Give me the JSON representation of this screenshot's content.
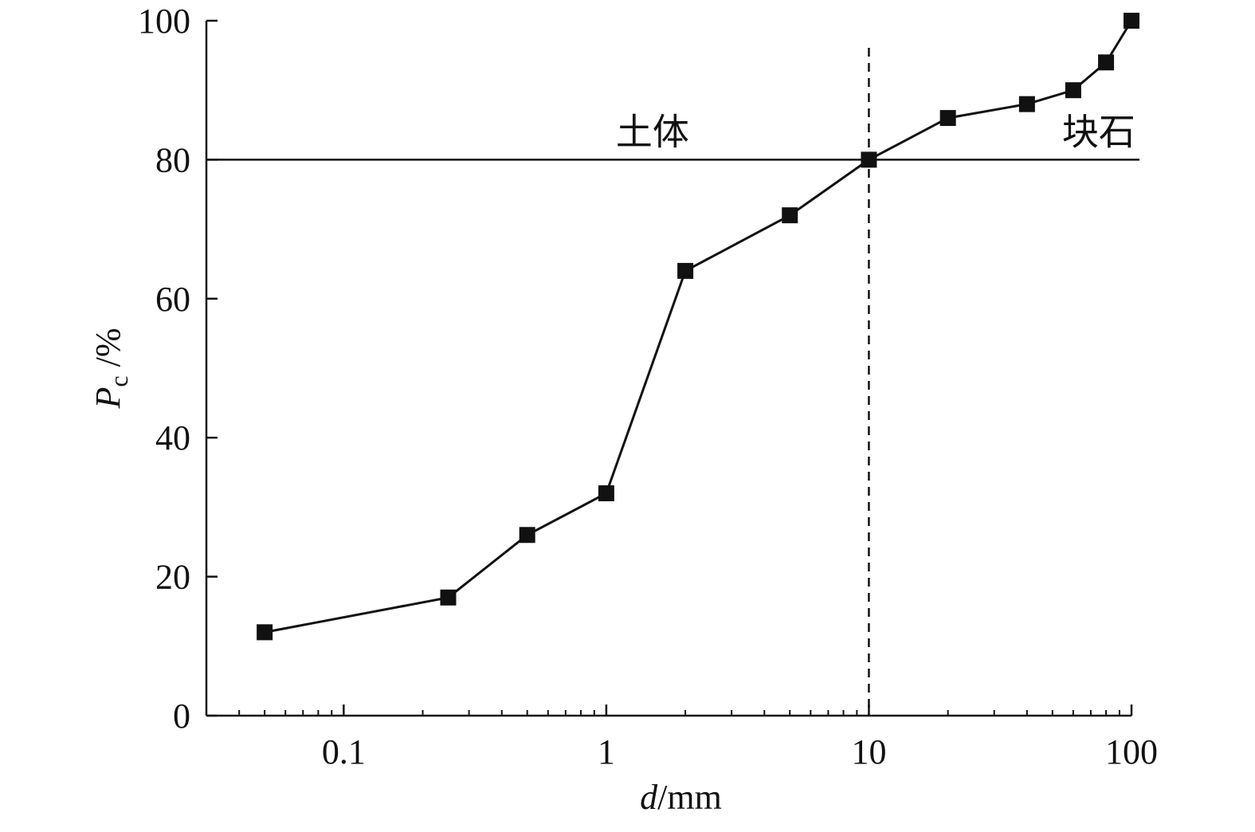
{
  "chart_data": {
    "type": "line",
    "xscale": "log",
    "xlim": [
      0.03,
      100
    ],
    "ylim": [
      0,
      100
    ],
    "grid": false,
    "xlabel": {
      "italic": "d",
      "rest": "/mm"
    },
    "ylabel": {
      "italic": "P",
      "subscript": "c",
      "rest": " /%"
    },
    "xticks": [
      {
        "value": 0.1,
        "label": "0.1"
      },
      {
        "value": 1,
        "label": "1"
      },
      {
        "value": 10,
        "label": "10"
      },
      {
        "value": 100,
        "label": "100"
      }
    ],
    "yticks": [
      {
        "value": 0,
        "label": "0"
      },
      {
        "value": 20,
        "label": "20"
      },
      {
        "value": 40,
        "label": "40"
      },
      {
        "value": 60,
        "label": "60"
      },
      {
        "value": 80,
        "label": "80"
      },
      {
        "value": 100,
        "label": "100"
      }
    ],
    "series": [
      {
        "marker": "square",
        "color": "#111111",
        "x": [
          0.05,
          0.25,
          0.5,
          1,
          2,
          5,
          10,
          20,
          40,
          60,
          80,
          100
        ],
        "y": [
          12,
          17,
          26,
          32,
          64,
          72,
          80,
          86,
          88,
          90,
          94,
          100
        ]
      }
    ],
    "reference_lines": [
      {
        "orientation": "horizontal",
        "value": 80,
        "style": "solid"
      },
      {
        "orientation": "vertical",
        "value": 10,
        "style": "dashed"
      }
    ],
    "annotations": [
      {
        "text": "土体",
        "x": 1.5,
        "y": 84
      },
      {
        "text": "块石",
        "x": 75,
        "y": 84
      }
    ]
  }
}
